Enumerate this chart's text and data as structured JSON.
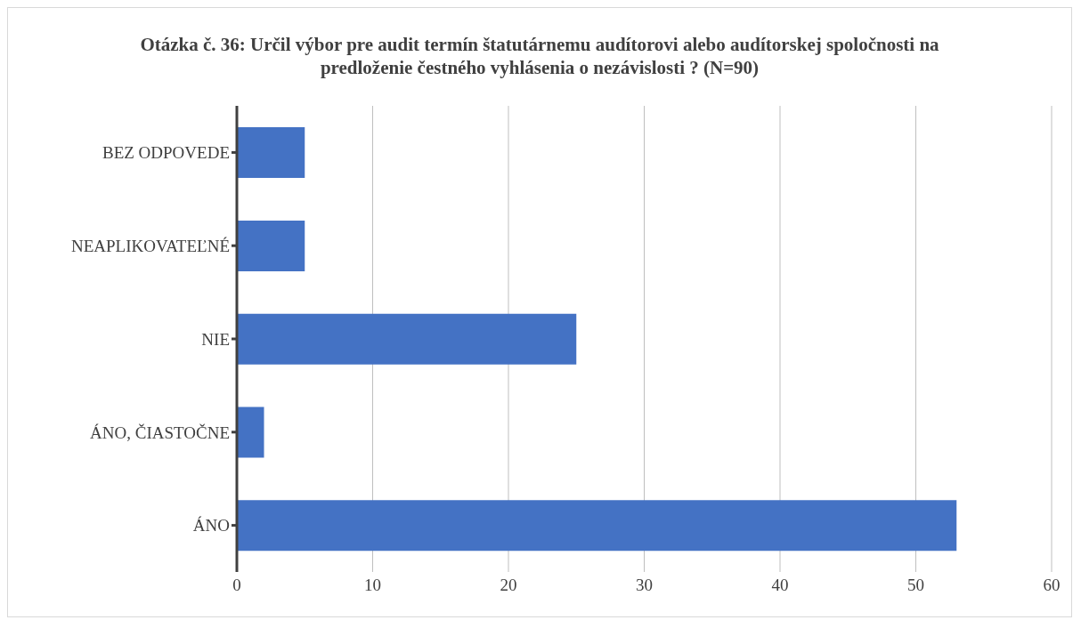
{
  "chart_data": {
    "type": "bar",
    "orientation": "horizontal",
    "title": "Otázka č. 36: Určil výbor pre audit termín štatutárnemu audítorovi alebo audítorskej spoločnosti na predloženie čestného vyhlásenia o nezávislosti ? (N=90)",
    "categories": [
      "BEZ ODPOVEDE",
      "NEAPLIKOVATEĽNÉ",
      "NIE",
      "ÁNO, ČIASTOČNE",
      "ÁNO"
    ],
    "values": [
      5,
      5,
      25,
      2,
      53
    ],
    "color": "#4472c4",
    "xlim": [
      0,
      60
    ],
    "xticks": [
      0,
      10,
      20,
      30,
      40,
      50,
      60
    ],
    "grid": "x"
  }
}
